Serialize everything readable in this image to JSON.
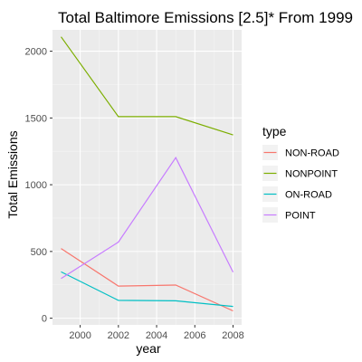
{
  "chart_data": {
    "type": "line",
    "title": "Total Baltimore Emissions [2.5]* From 1999",
    "xlabel": "year",
    "ylabel": "Total Emissions",
    "x": [
      1999,
      2002,
      2005,
      2008
    ],
    "xlim": [
      1998.55,
      2008.45
    ],
    "ylim": [
      -50,
      2160
    ],
    "x_ticks": [
      2000,
      2002,
      2004,
      2006,
      2008
    ],
    "y_ticks": [
      0,
      500,
      1000,
      1500,
      2000
    ],
    "grid": true,
    "legend": {
      "title": "type",
      "position": "right"
    },
    "series": [
      {
        "name": "NON-ROAD",
        "color": "#F8766D",
        "values": [
          522,
          241,
          248,
          55
        ]
      },
      {
        "name": "NONPOINT",
        "color": "#7CAE00",
        "values": [
          2108,
          1510,
          1510,
          1373
        ]
      },
      {
        "name": "ON-ROAD",
        "color": "#00BFC4",
        "values": [
          347,
          134,
          130,
          88
        ]
      },
      {
        "name": "POINT",
        "color": "#C77CFF",
        "values": [
          297,
          570,
          1203,
          345
        ]
      }
    ]
  }
}
